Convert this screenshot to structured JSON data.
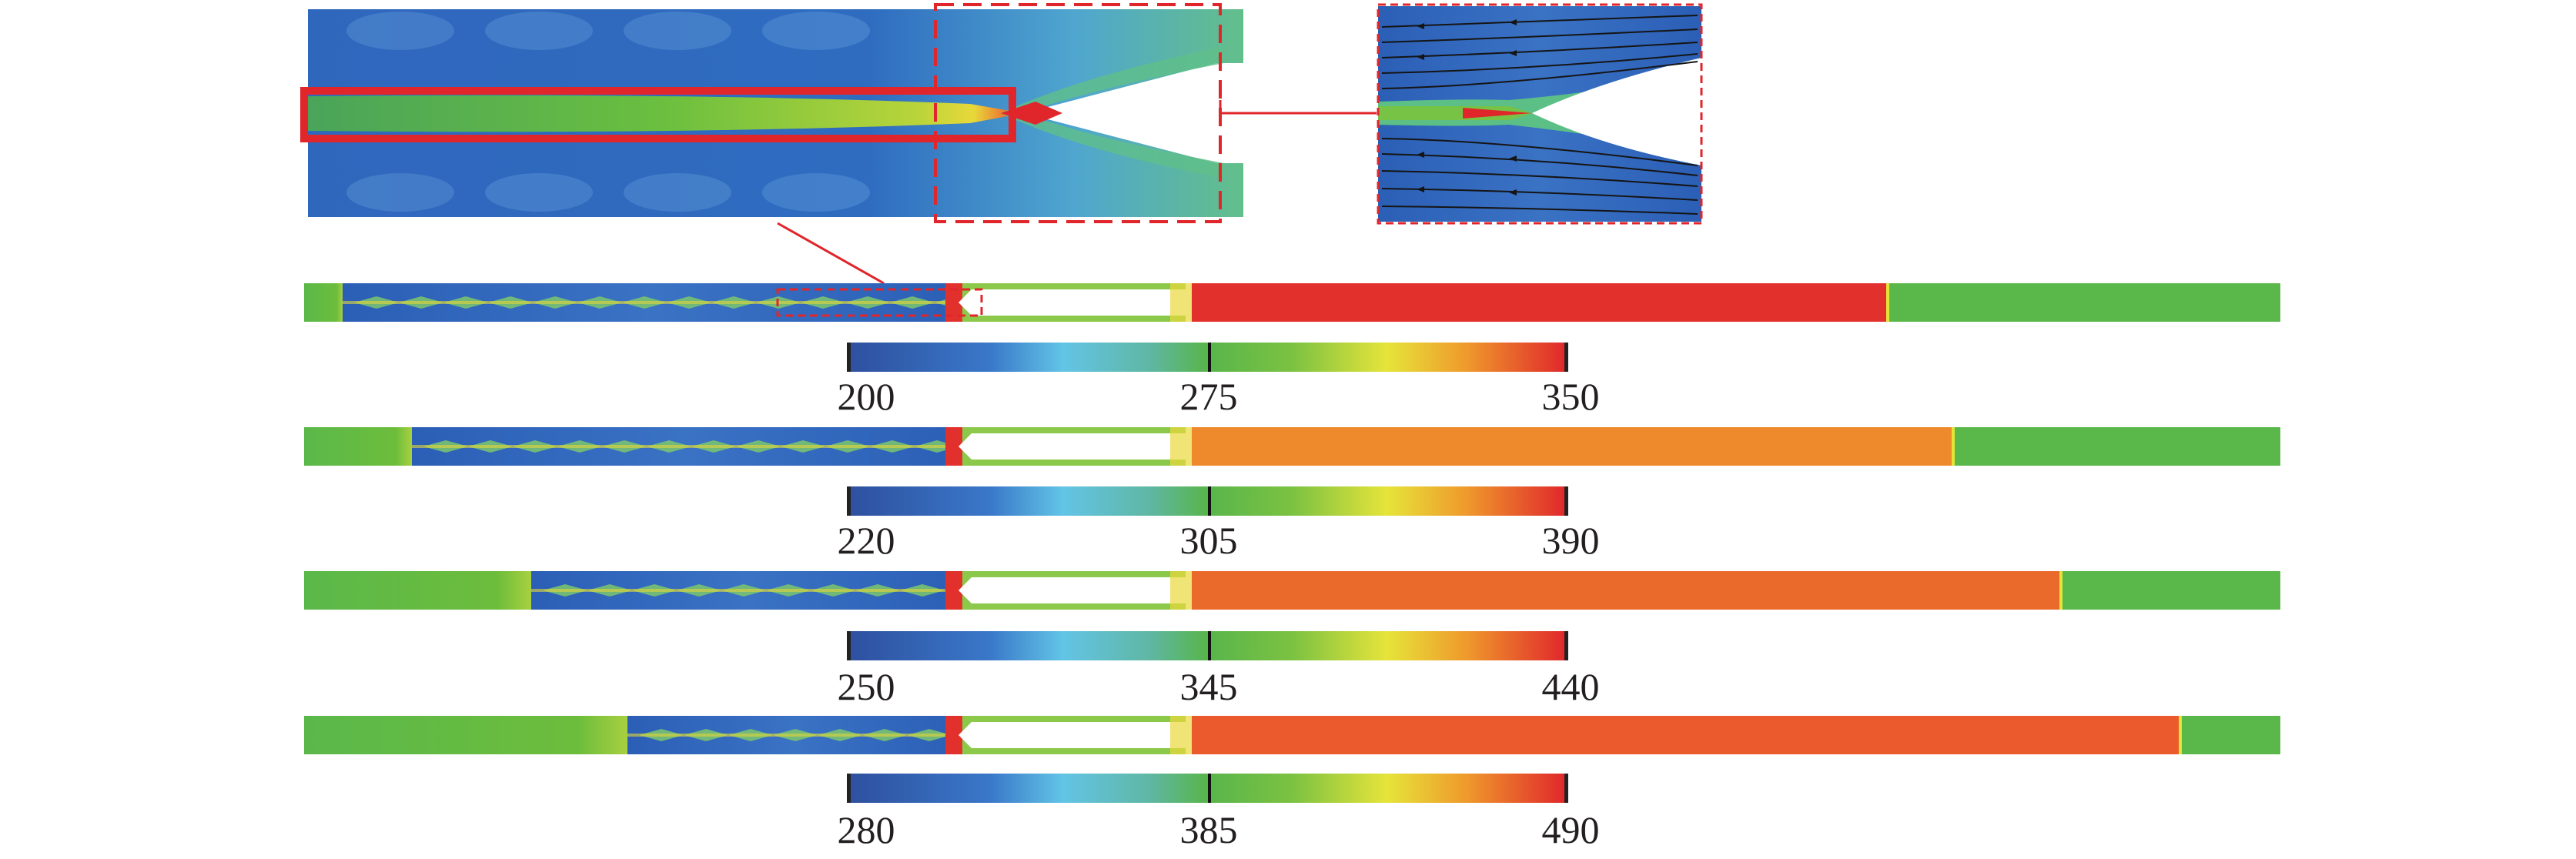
{
  "colorbars": [
    {
      "min": "200",
      "mid": "275",
      "max": "350"
    },
    {
      "min": "220",
      "mid": "305",
      "max": "390"
    },
    {
      "min": "250",
      "mid": "345",
      "max": "440"
    },
    {
      "min": "280",
      "mid": "385",
      "max": "490"
    }
  ],
  "colors": {
    "blue": "#2f5fb3",
    "cyan": "#62c4e6",
    "green": "#5ab84a",
    "yellow": "#e3e33a",
    "orange": "#ee8a2b",
    "red": "#e2312d",
    "highlight": "#e0262b"
  }
}
